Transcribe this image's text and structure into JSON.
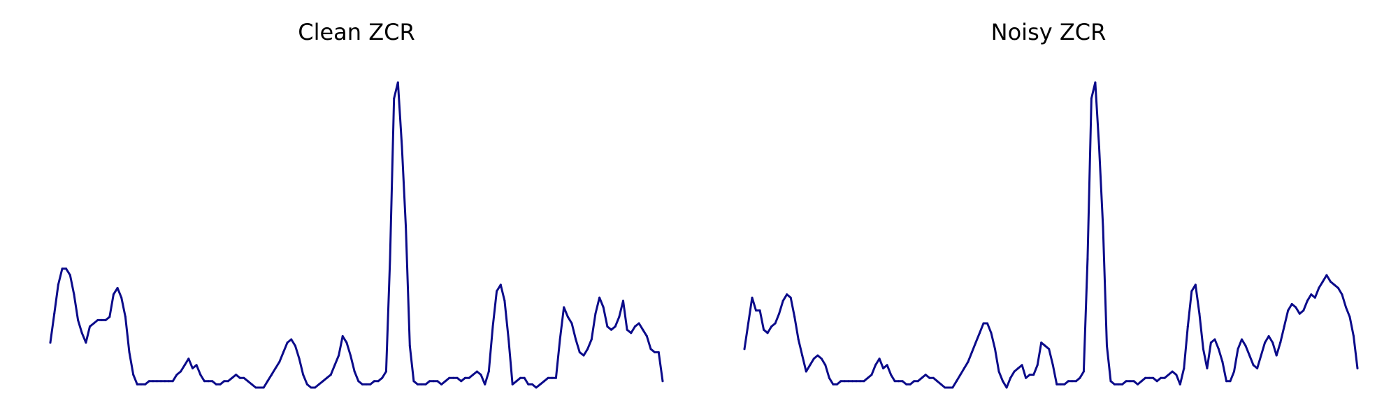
{
  "line_color": "#0b0b8a",
  "chart_data": [
    {
      "type": "line",
      "title": "Clean ZCR",
      "xlabel": "",
      "ylabel": "",
      "grid": false,
      "axes_visible": false,
      "series": [
        {
          "values": [
            0.14,
            0.23,
            0.32,
            0.37,
            0.37,
            0.35,
            0.29,
            0.21,
            0.17,
            0.14,
            0.19,
            0.2,
            0.21,
            0.21,
            0.21,
            0.22,
            0.29,
            0.31,
            0.28,
            0.22,
            0.11,
            0.04,
            0.01,
            0.01,
            0.01,
            0.02,
            0.02,
            0.02,
            0.02,
            0.02,
            0.02,
            0.02,
            0.04,
            0.05,
            0.07,
            0.09,
            0.06,
            0.07,
            0.04,
            0.02,
            0.02,
            0.02,
            0.01,
            0.01,
            0.02,
            0.02,
            0.03,
            0.04,
            0.03,
            0.03,
            0.02,
            0.01,
            0.0,
            0.0,
            0.0,
            0.02,
            0.04,
            0.06,
            0.08,
            0.11,
            0.14,
            0.15,
            0.13,
            0.09,
            0.04,
            0.01,
            0.0,
            0.0,
            0.01,
            0.02,
            0.03,
            0.04,
            0.07,
            0.1,
            0.16,
            0.14,
            0.1,
            0.05,
            0.02,
            0.01,
            0.01,
            0.01,
            0.02,
            0.02,
            0.03,
            0.05,
            0.4,
            0.9,
            0.95,
            0.75,
            0.5,
            0.13,
            0.02,
            0.01,
            0.01,
            0.01,
            0.02,
            0.02,
            0.02,
            0.01,
            0.02,
            0.03,
            0.03,
            0.03,
            0.02,
            0.03,
            0.03,
            0.04,
            0.05,
            0.04,
            0.01,
            0.05,
            0.19,
            0.3,
            0.32,
            0.27,
            0.15,
            0.01,
            0.02,
            0.03,
            0.03,
            0.01,
            0.01,
            0.0,
            0.01,
            0.02,
            0.03,
            0.03,
            0.03,
            0.15,
            0.25,
            0.22,
            0.2,
            0.15,
            0.11,
            0.1,
            0.12,
            0.15,
            0.23,
            0.28,
            0.25,
            0.19,
            0.18,
            0.19,
            0.22,
            0.27,
            0.18,
            0.17,
            0.19,
            0.2,
            0.18,
            0.16,
            0.12,
            0.11,
            0.11,
            0.02
          ]
        }
      ]
    },
    {
      "type": "line",
      "title": "Noisy ZCR",
      "xlabel": "",
      "ylabel": "",
      "grid": false,
      "axes_visible": false,
      "series": [
        {
          "values": [
            0.12,
            0.2,
            0.28,
            0.24,
            0.24,
            0.18,
            0.17,
            0.19,
            0.2,
            0.23,
            0.27,
            0.29,
            0.28,
            0.22,
            0.15,
            0.1,
            0.05,
            0.07,
            0.09,
            0.1,
            0.09,
            0.07,
            0.03,
            0.01,
            0.01,
            0.02,
            0.02,
            0.02,
            0.02,
            0.02,
            0.02,
            0.02,
            0.03,
            0.04,
            0.07,
            0.09,
            0.06,
            0.07,
            0.04,
            0.02,
            0.02,
            0.02,
            0.01,
            0.01,
            0.02,
            0.02,
            0.03,
            0.04,
            0.03,
            0.03,
            0.02,
            0.01,
            0.0,
            0.0,
            0.0,
            0.02,
            0.04,
            0.06,
            0.08,
            0.11,
            0.14,
            0.17,
            0.2,
            0.2,
            0.17,
            0.12,
            0.05,
            0.02,
            0.0,
            0.03,
            0.05,
            0.06,
            0.07,
            0.03,
            0.04,
            0.04,
            0.07,
            0.14,
            0.13,
            0.12,
            0.07,
            0.01,
            0.01,
            0.01,
            0.02,
            0.02,
            0.02,
            0.03,
            0.05,
            0.4,
            0.9,
            0.95,
            0.75,
            0.5,
            0.13,
            0.02,
            0.01,
            0.01,
            0.01,
            0.02,
            0.02,
            0.02,
            0.01,
            0.02,
            0.03,
            0.03,
            0.03,
            0.02,
            0.03,
            0.03,
            0.04,
            0.05,
            0.04,
            0.01,
            0.06,
            0.19,
            0.3,
            0.32,
            0.23,
            0.12,
            0.06,
            0.14,
            0.15,
            0.12,
            0.08,
            0.02,
            0.02,
            0.05,
            0.12,
            0.15,
            0.13,
            0.1,
            0.07,
            0.06,
            0.1,
            0.14,
            0.16,
            0.14,
            0.1,
            0.14,
            0.19,
            0.24,
            0.26,
            0.25,
            0.23,
            0.24,
            0.27,
            0.29,
            0.28,
            0.31,
            0.33,
            0.35,
            0.33,
            0.32,
            0.31,
            0.29,
            0.25,
            0.22,
            0.16,
            0.06
          ]
        }
      ]
    }
  ]
}
